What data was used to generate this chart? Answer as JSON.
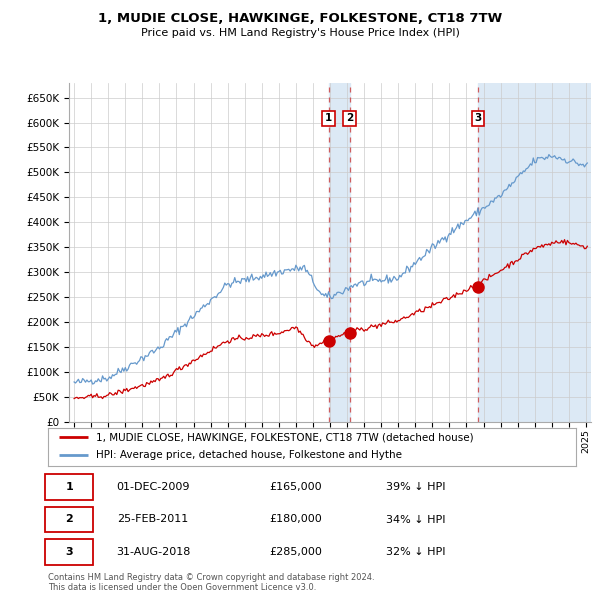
{
  "title": "1, MUDIE CLOSE, HAWKINGE, FOLKESTONE, CT18 7TW",
  "subtitle": "Price paid vs. HM Land Registry's House Price Index (HPI)",
  "ylim": [
    0,
    680000
  ],
  "yticks": [
    0,
    50000,
    100000,
    150000,
    200000,
    250000,
    300000,
    350000,
    400000,
    450000,
    500000,
    550000,
    600000,
    650000
  ],
  "ytick_labels": [
    "£0",
    "£50K",
    "£100K",
    "£150K",
    "£200K",
    "£250K",
    "£300K",
    "£350K",
    "£400K",
    "£450K",
    "£500K",
    "£550K",
    "£600K",
    "£650K"
  ],
  "transaction_color": "#cc0000",
  "hpi_color": "#6699cc",
  "shade_color": "#dce9f5",
  "transaction_label": "1, MUDIE CLOSE, HAWKINGE, FOLKESTONE, CT18 7TW (detached house)",
  "hpi_label": "HPI: Average price, detached house, Folkestone and Hythe",
  "purchases": [
    {
      "num": 1,
      "date_x": 2009.92,
      "price": 165000,
      "label": "1",
      "desc": "01-DEC-2009",
      "pct": "39% ↓ HPI"
    },
    {
      "num": 2,
      "date_x": 2011.15,
      "price": 180000,
      "label": "2",
      "desc": "25-FEB-2011",
      "pct": "34% ↓ HPI"
    },
    {
      "num": 3,
      "date_x": 2018.67,
      "price": 285000,
      "label": "3",
      "desc": "31-AUG-2018",
      "pct": "32% ↓ HPI"
    }
  ],
  "vline_color": "#cc4444",
  "vline_style": "--",
  "footer1": "Contains HM Land Registry data © Crown copyright and database right 2024.",
  "footer2": "This data is licensed under the Open Government Licence v3.0.",
  "background_color": "#ffffff",
  "grid_color": "#cccccc",
  "xlim_left": 1994.7,
  "xlim_right": 2025.3
}
